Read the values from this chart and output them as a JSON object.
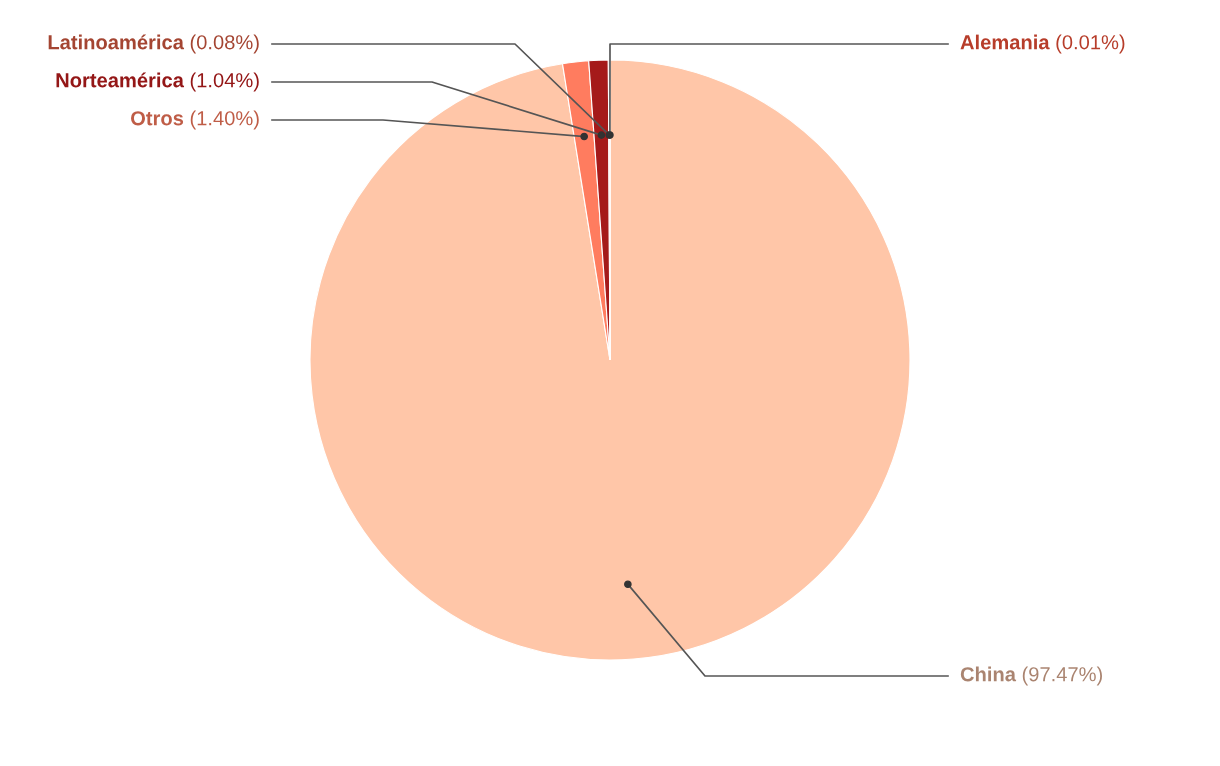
{
  "chart_data": {
    "type": "pie",
    "categories": [
      "China",
      "Otros",
      "Norteamérica",
      "Latinoamérica",
      "Alemania"
    ],
    "values": [
      97.47,
      1.4,
      1.04,
      0.08,
      0.01
    ],
    "colors": [
      "#ffc6a8",
      "#ff7c5f",
      "#a51a1a",
      "#c9553d",
      "#e04a33"
    ],
    "value_labels": [
      "(97.47%)",
      "(1.40%)",
      "(1.04%)",
      "(0.08%)",
      "(0.01%)"
    ]
  }
}
